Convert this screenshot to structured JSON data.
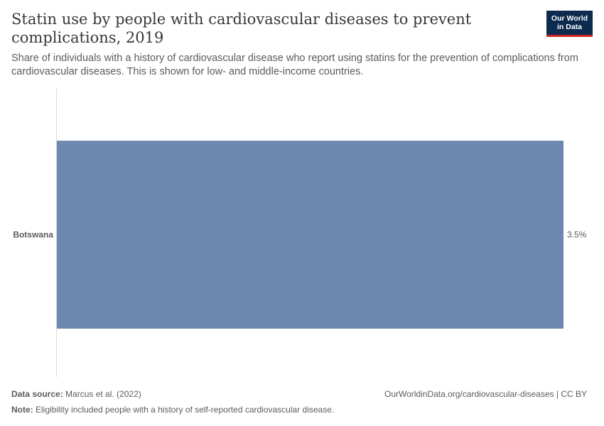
{
  "header": {
    "title": "Statin use by people with cardiovascular diseases to prevent complications, 2019",
    "subtitle": "Share of individuals with a history of cardiovascular disease who report using statins for the prevention of complications from cardiovascular diseases. This is shown for low- and middle-income countries.",
    "logo_line1": "Our World",
    "logo_line2": "in Data"
  },
  "chart_data": {
    "type": "bar",
    "orientation": "horizontal",
    "categories": [
      "Botswana"
    ],
    "values": [
      3.5
    ],
    "value_labels": [
      "3.5%"
    ],
    "unit": "%",
    "xlim": [
      0,
      3.5
    ],
    "grid": false,
    "bar_color": "#6d87b0"
  },
  "footer": {
    "source_label": "Data source:",
    "source_text": " Marcus et al. (2022)",
    "note_label": "Note:",
    "note_text": " Eligibility included people with a history of self-reported cardiovascular disease.",
    "url": "OurWorldinData.org/cardiovascular-diseases | CC BY"
  }
}
